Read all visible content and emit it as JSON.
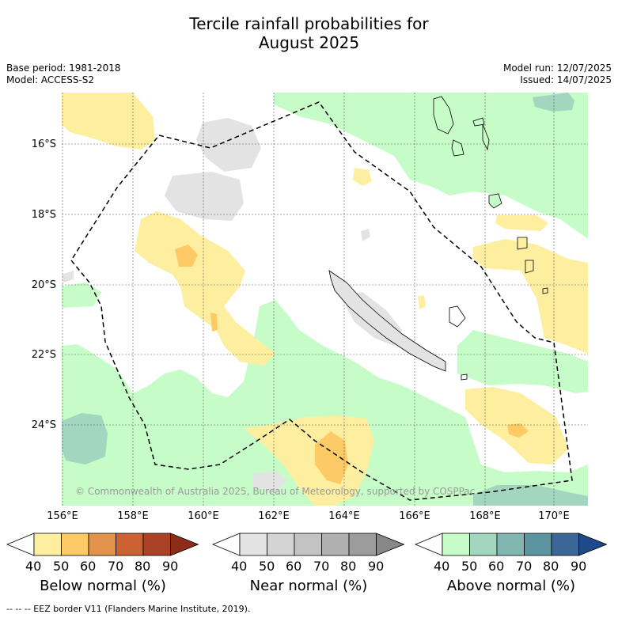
{
  "title_line1": "Tercile rainfall probabilities for",
  "title_line2": "August 2025",
  "meta_left": {
    "base_period": "Base period: 1981-2018",
    "model": "Model: ACCESS-S2"
  },
  "meta_right": {
    "model_run": "Model run: 12/07/2025",
    "issued": "Issued: 14/07/2025"
  },
  "map": {
    "lat_labels": [
      "16°S",
      "18°S",
      "20°S",
      "22°S",
      "24°S"
    ],
    "lon_labels": [
      "156°E",
      "158°E",
      "160°E",
      "162°E",
      "164°E",
      "166°E",
      "168°E",
      "170°E"
    ],
    "copyright": "© Commonwealth of Australia 2025, Bureau of Meteorology, supported by COSPPac"
  },
  "colorbars": [
    {
      "title": "Below normal (%)",
      "ticks": [
        "40",
        "50",
        "60",
        "70",
        "80",
        "90"
      ],
      "colors": [
        "#ffffff",
        "#feeea0",
        "#fdcb65",
        "#e4934b",
        "#cc6232",
        "#ab4226",
        "#8c2d1a"
      ]
    },
    {
      "title": "Near normal (%)",
      "ticks": [
        "40",
        "50",
        "60",
        "70",
        "80",
        "90"
      ],
      "colors": [
        "#ffffff",
        "#e3e3e3",
        "#d4d4d4",
        "#c3c3c3",
        "#b0b0b0",
        "#9c9c9c",
        "#878787"
      ]
    },
    {
      "title": "Above normal (%)",
      "ticks": [
        "40",
        "50",
        "60",
        "70",
        "80",
        "90"
      ],
      "colors": [
        "#ffffff",
        "#c6fcc8",
        "#a2d6bf",
        "#82b7b1",
        "#5c95a2",
        "#3b6697",
        "#1e4a8a"
      ]
    }
  ],
  "footer": "--  --  -- EEZ border V11 (Flanders Marine Institute, 2019)."
}
